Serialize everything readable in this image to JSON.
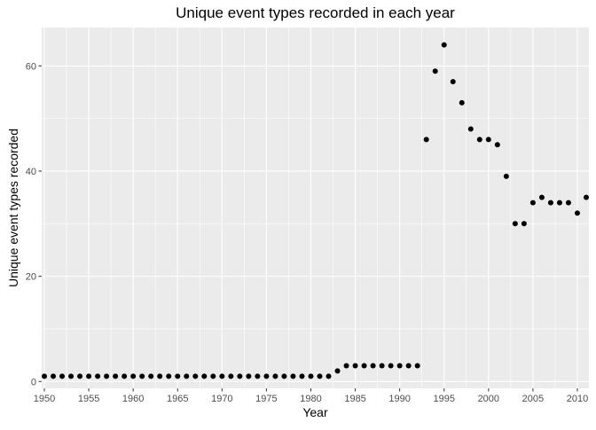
{
  "chart_data": {
    "type": "scatter",
    "title": "Unique event types recorded in each year",
    "xlabel": "Year",
    "ylabel": "Unique event types recorded",
    "xlim": [
      1949.7,
      2011.3
    ],
    "ylim": [
      -1.3,
      67.3
    ],
    "grid": true,
    "x_ticks": [
      1950,
      1955,
      1960,
      1965,
      1970,
      1975,
      1980,
      1985,
      1990,
      1995,
      2000,
      2005,
      2010
    ],
    "y_ticks": [
      0,
      20,
      40,
      60
    ],
    "points": [
      {
        "x": 1950,
        "y": 1
      },
      {
        "x": 1951,
        "y": 1
      },
      {
        "x": 1952,
        "y": 1
      },
      {
        "x": 1953,
        "y": 1
      },
      {
        "x": 1954,
        "y": 1
      },
      {
        "x": 1955,
        "y": 1
      },
      {
        "x": 1956,
        "y": 1
      },
      {
        "x": 1957,
        "y": 1
      },
      {
        "x": 1958,
        "y": 1
      },
      {
        "x": 1959,
        "y": 1
      },
      {
        "x": 1960,
        "y": 1
      },
      {
        "x": 1961,
        "y": 1
      },
      {
        "x": 1962,
        "y": 1
      },
      {
        "x": 1963,
        "y": 1
      },
      {
        "x": 1964,
        "y": 1
      },
      {
        "x": 1965,
        "y": 1
      },
      {
        "x": 1966,
        "y": 1
      },
      {
        "x": 1967,
        "y": 1
      },
      {
        "x": 1968,
        "y": 1
      },
      {
        "x": 1969,
        "y": 1
      },
      {
        "x": 1970,
        "y": 1
      },
      {
        "x": 1971,
        "y": 1
      },
      {
        "x": 1972,
        "y": 1
      },
      {
        "x": 1973,
        "y": 1
      },
      {
        "x": 1974,
        "y": 1
      },
      {
        "x": 1975,
        "y": 1
      },
      {
        "x": 1976,
        "y": 1
      },
      {
        "x": 1977,
        "y": 1
      },
      {
        "x": 1978,
        "y": 1
      },
      {
        "x": 1979,
        "y": 1
      },
      {
        "x": 1980,
        "y": 1
      },
      {
        "x": 1981,
        "y": 1
      },
      {
        "x": 1982,
        "y": 1
      },
      {
        "x": 1983,
        "y": 2
      },
      {
        "x": 1984,
        "y": 3
      },
      {
        "x": 1985,
        "y": 3
      },
      {
        "x": 1986,
        "y": 3
      },
      {
        "x": 1987,
        "y": 3
      },
      {
        "x": 1988,
        "y": 3
      },
      {
        "x": 1989,
        "y": 3
      },
      {
        "x": 1990,
        "y": 3
      },
      {
        "x": 1991,
        "y": 3
      },
      {
        "x": 1992,
        "y": 3
      },
      {
        "x": 1993,
        "y": 46
      },
      {
        "x": 1994,
        "y": 59
      },
      {
        "x": 1995,
        "y": 64
      },
      {
        "x": 1996,
        "y": 57
      },
      {
        "x": 1997,
        "y": 53
      },
      {
        "x": 1998,
        "y": 48
      },
      {
        "x": 1999,
        "y": 46
      },
      {
        "x": 2000,
        "y": 46
      },
      {
        "x": 2001,
        "y": 45
      },
      {
        "x": 2002,
        "y": 39
      },
      {
        "x": 2003,
        "y": 30
      },
      {
        "x": 2004,
        "y": 30
      },
      {
        "x": 2005,
        "y": 34
      },
      {
        "x": 2006,
        "y": 35
      },
      {
        "x": 2007,
        "y": 34
      },
      {
        "x": 2008,
        "y": 34
      },
      {
        "x": 2009,
        "y": 34
      },
      {
        "x": 2010,
        "y": 32
      },
      {
        "x": 2011,
        "y": 35
      }
    ],
    "colors": {
      "panel": "#ebebeb",
      "grid_major": "#ffffff",
      "point": "#000000",
      "tick_text": "#4d4d4d",
      "axis_tick": "#333333",
      "title_text": "#000000"
    }
  }
}
